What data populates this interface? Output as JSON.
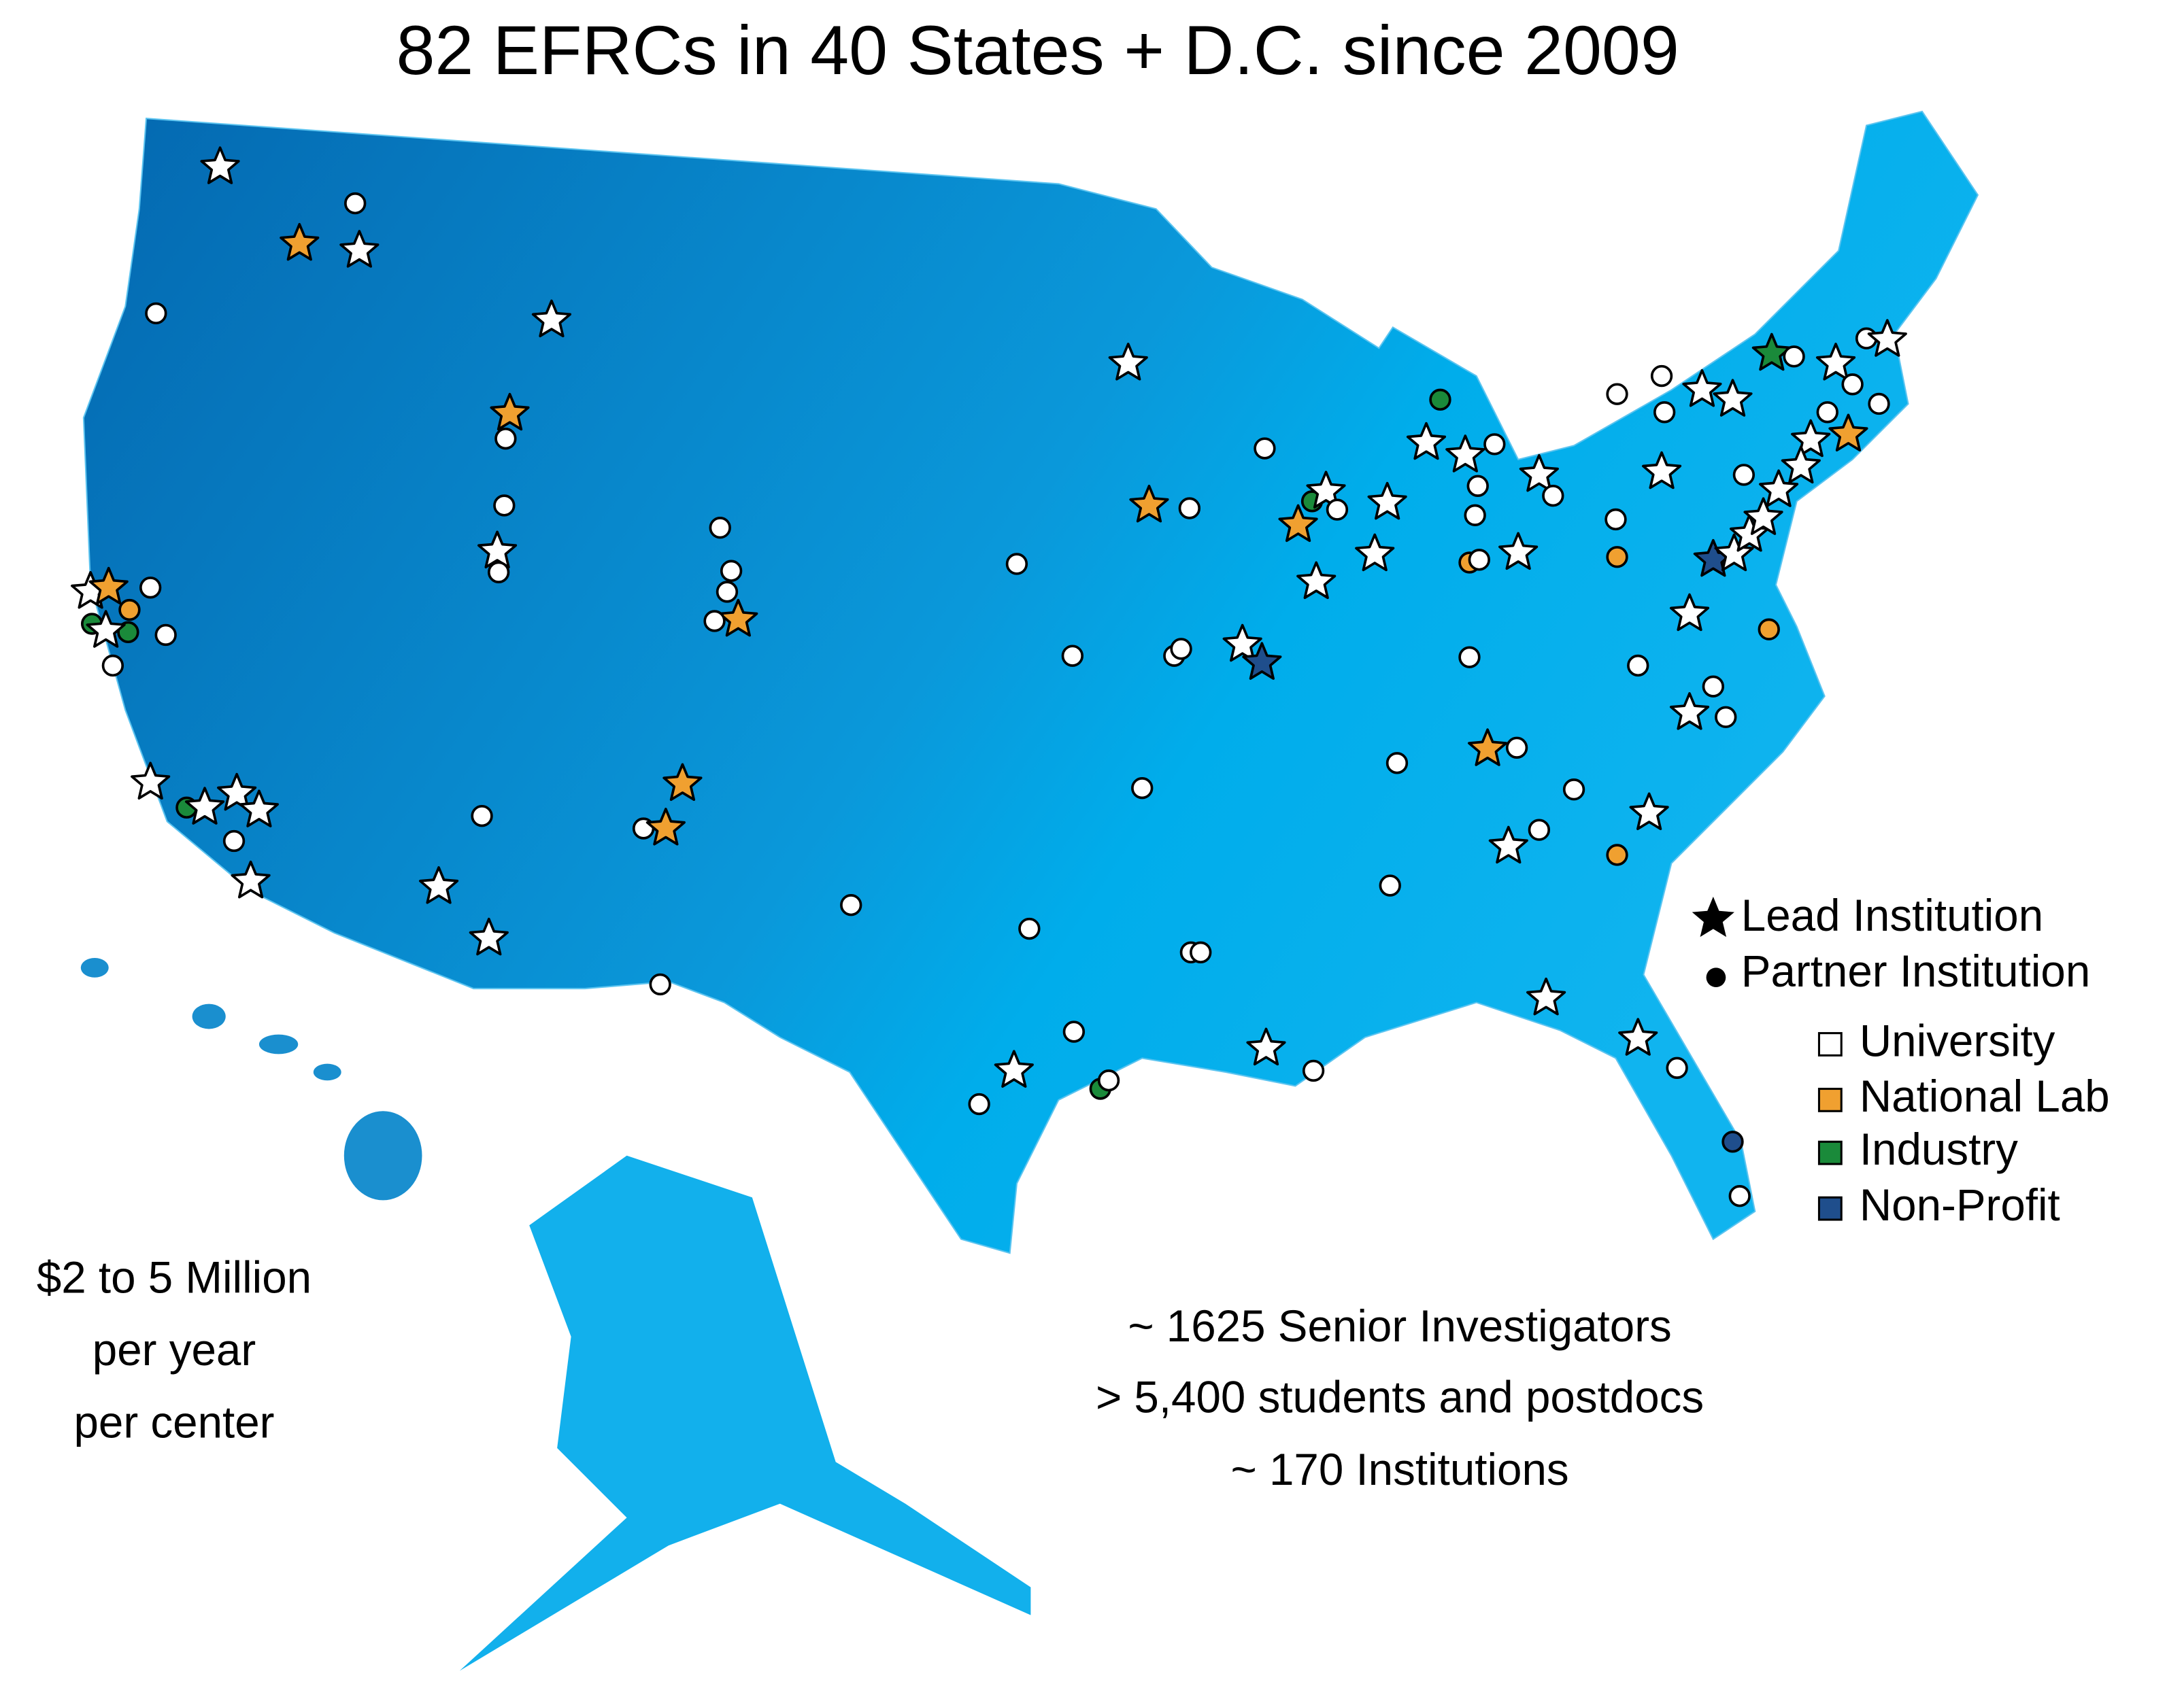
{
  "title": "82 EFRCs in 40 States + D.C. since 2009",
  "legend": {
    "lead": "Lead Institution",
    "partner": "Partner Institution",
    "types": [
      "University",
      "National Lab",
      "Industry",
      "Non-Profit"
    ]
  },
  "funding": [
    "$2 to 5 Million",
    "per year",
    "per center"
  ],
  "stats": [
    "~ 1625 Senior Investigators",
    "> 5,400 students and postdocs",
    "~ 170 Institutions"
  ]
}
